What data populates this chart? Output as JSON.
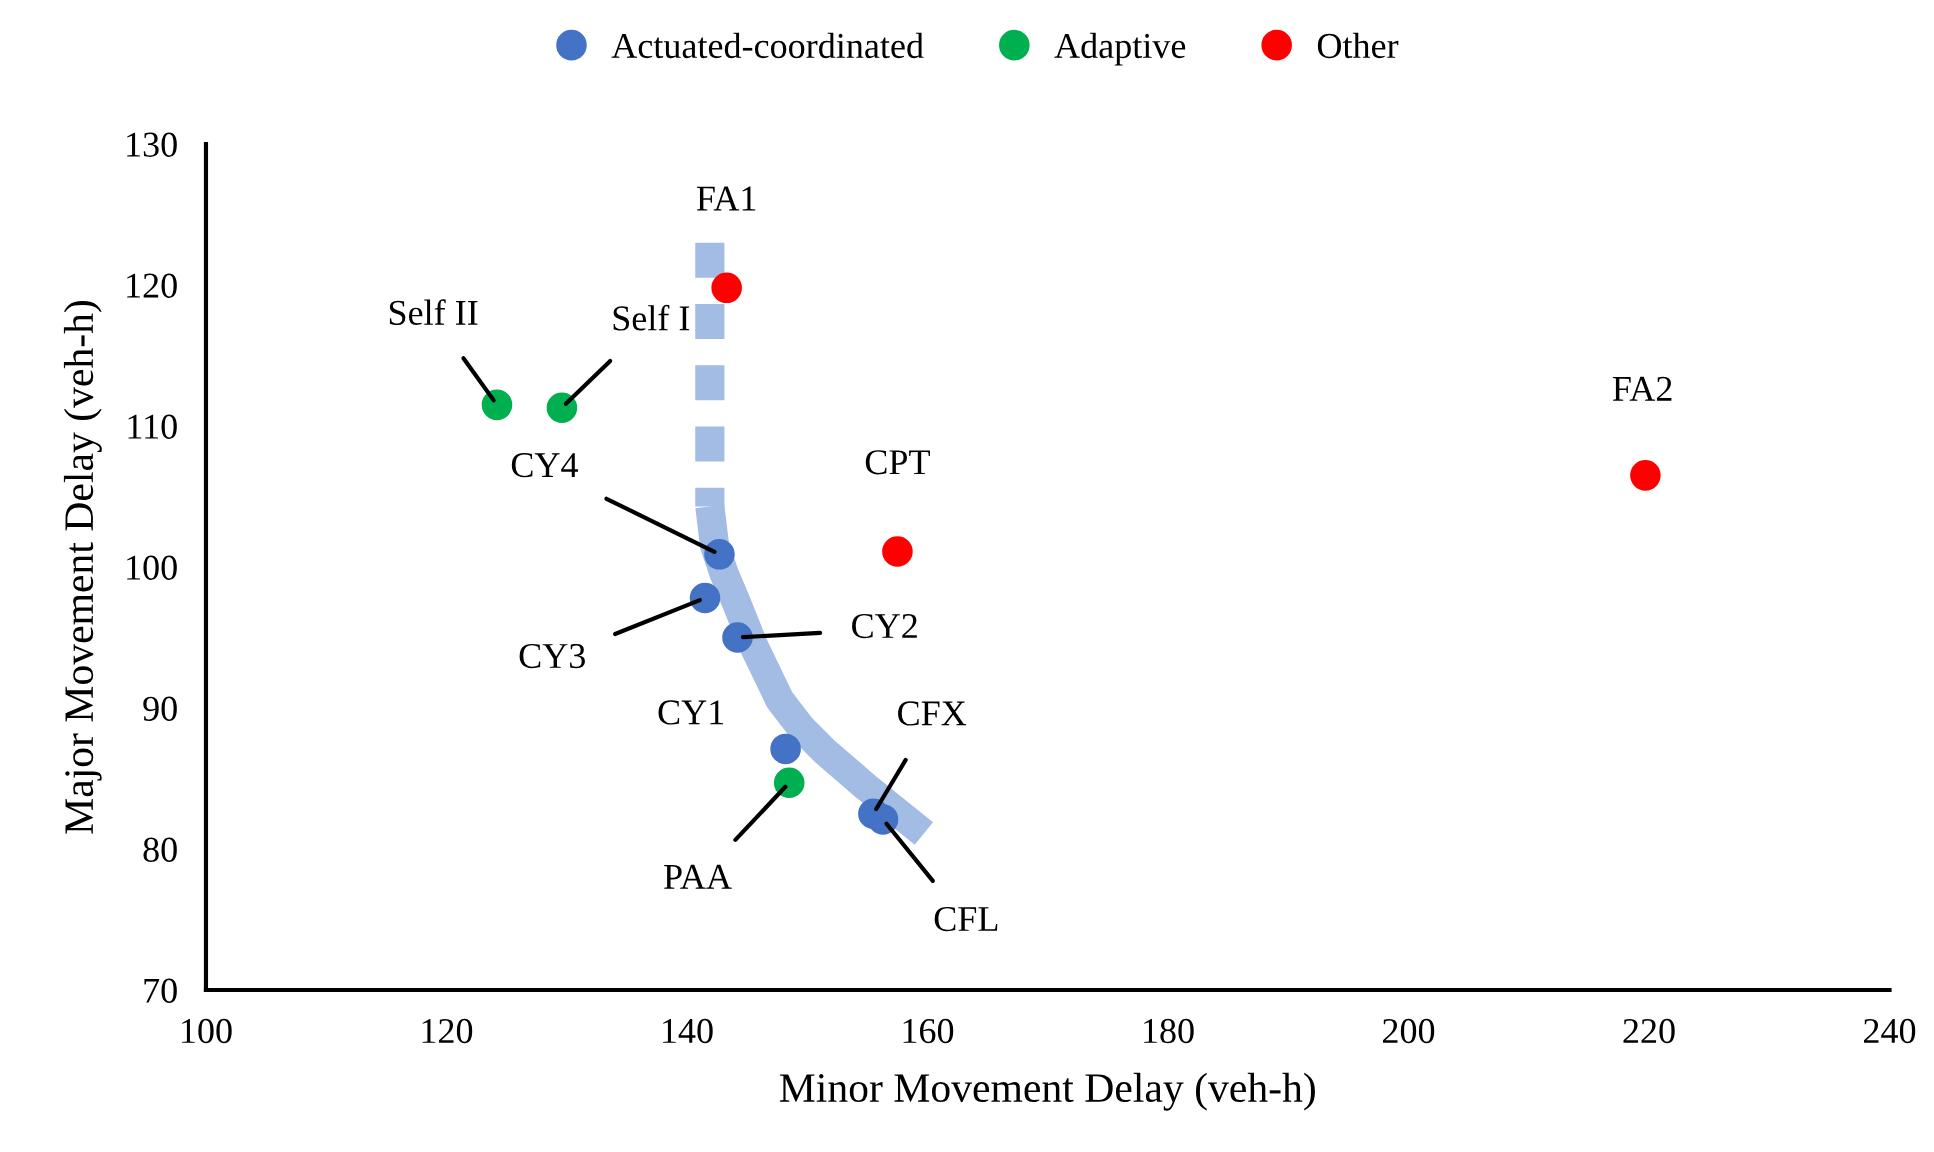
{
  "chart_data": {
    "type": "scatter",
    "xlabel": "Minor Movement Delay (veh-h)",
    "ylabel": "Major Movement Delay (veh-h)",
    "xlim": [
      100,
      240
    ],
    "xticks": [
      100,
      120,
      140,
      160,
      180,
      200,
      220,
      240
    ],
    "ylim": [
      70,
      130
    ],
    "yticks": [
      70,
      80,
      90,
      100,
      110,
      120,
      130
    ],
    "grid": false,
    "legend": "top",
    "series": [
      {
        "type": "line",
        "marker": "none",
        "line_style": "dashed",
        "color": "#a3bce3",
        "x": [
          141.9,
          141.9
        ],
        "values": [
          123,
          104.3
        ]
      },
      {
        "type": "line",
        "marker": "none",
        "line_style": "solid",
        "color": "#a3bce3",
        "x": [
          141.9,
          142.3,
          143.1,
          144,
          145.5,
          147.7,
          149.5,
          151.5,
          154.9,
          159.7
        ],
        "values": [
          104.3,
          101.5,
          99.5,
          97.7,
          94.5,
          90.6,
          88.6,
          86.9,
          84.4,
          81.1
        ]
      },
      {
        "name": "Actuated-coordinated",
        "marker": "circle",
        "color": "#4472c4",
        "x": [
          142.7,
          141.5,
          144.2,
          148.2,
          155.5,
          156.3
        ],
        "values": [
          100.9,
          97.8,
          95.0,
          87.1,
          82.5,
          82.1
        ]
      },
      {
        "name": "Adaptive",
        "marker": "circle",
        "color": "#00b050",
        "x": [
          124.2,
          129.6,
          148.5
        ],
        "values": [
          111.5,
          111.3,
          84.7
        ]
      },
      {
        "name": "Other",
        "marker": "circle",
        "color": "#ff0000",
        "x": [
          143.3,
          219.7,
          157.5
        ],
        "values": [
          119.8,
          106.5,
          101.1
        ]
      }
    ],
    "annotations": [
      {
        "text": "CY4",
        "x": 142.7,
        "y": 100.9
      },
      {
        "text": "CY3",
        "x": 141.5,
        "y": 97.8
      },
      {
        "text": "CY2",
        "x": 144.2,
        "y": 95.0
      },
      {
        "text": "CY1",
        "x": 148.2,
        "y": 87.1
      },
      {
        "text": "CFX",
        "x": 155.5,
        "y": 82.5
      },
      {
        "text": "CFL",
        "x": 156.3,
        "y": 82.1
      },
      {
        "text": "Self II",
        "x": 124.2,
        "y": 111.5
      },
      {
        "text": "Self I",
        "x": 129.6,
        "y": 111.3
      },
      {
        "text": "PAA",
        "x": 148.5,
        "y": 84.7
      },
      {
        "text": "FA1",
        "x": 143.3,
        "y": 119.8
      },
      {
        "text": "FA2",
        "x": 219.7,
        "y": 106.5
      },
      {
        "text": "CPT",
        "x": 157.5,
        "y": 101.1
      }
    ]
  }
}
